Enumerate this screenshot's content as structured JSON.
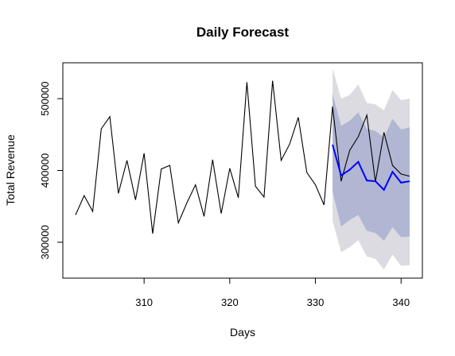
{
  "chart_data": {
    "type": "line",
    "title": "Daily Forecast",
    "xlabel": "Days",
    "ylabel": "Total Revenue",
    "xlim": [
      302,
      341
    ],
    "ylim": [
      250000,
      550000
    ],
    "x_ticks": [
      310,
      320,
      330,
      340
    ],
    "x_tick_labels": [
      "310",
      "320",
      "330",
      "340"
    ],
    "y_ticks": [
      300000,
      400000,
      500000
    ],
    "y_tick_labels": [
      "300000",
      "400000",
      "500000"
    ],
    "grid": false,
    "legend": "none",
    "colors": {
      "observed": "#000000",
      "forecast": "#0000ff",
      "band80": "#b1b6d3",
      "band95": "#dbdbe1"
    },
    "observed": {
      "x": [
        302,
        303,
        304,
        305,
        306,
        307,
        308,
        309,
        310,
        311,
        312,
        313,
        314,
        315,
        316,
        317,
        318,
        319,
        320,
        321,
        322,
        323,
        324,
        325,
        326,
        327,
        328,
        329,
        330,
        331,
        332,
        333,
        334,
        335,
        336,
        337,
        338,
        339,
        340,
        341
      ],
      "y": [
        338000,
        365000,
        343000,
        458000,
        475000,
        368000,
        414000,
        359000,
        424000,
        312000,
        402000,
        407000,
        327000,
        355000,
        380000,
        336000,
        415000,
        340000,
        403000,
        362000,
        523000,
        378000,
        363000,
        525000,
        414000,
        437000,
        474000,
        397000,
        380000,
        352000,
        489000,
        385000,
        428000,
        447000,
        477000,
        384000,
        453000,
        407000,
        395000,
        392000
      ]
    },
    "forecast": {
      "x": [
        332,
        333,
        334,
        335,
        336,
        337,
        338,
        339,
        340,
        341
      ],
      "mean": [
        436000,
        393000,
        401000,
        412000,
        386000,
        385000,
        373000,
        398000,
        383000,
        385000
      ],
      "lo80": [
        371000,
        322000,
        331000,
        338000,
        316000,
        313000,
        302000,
        321000,
        307000,
        308000
      ],
      "hi80": [
        507000,
        462000,
        469000,
        481000,
        458000,
        455000,
        446000,
        472000,
        457000,
        460000
      ],
      "lo95": [
        330000,
        286000,
        293000,
        303000,
        280000,
        277000,
        262000,
        283000,
        267000,
        268000
      ],
      "hi95": [
        542000,
        500000,
        505000,
        520000,
        494000,
        492000,
        484000,
        512000,
        498000,
        500000
      ]
    }
  }
}
